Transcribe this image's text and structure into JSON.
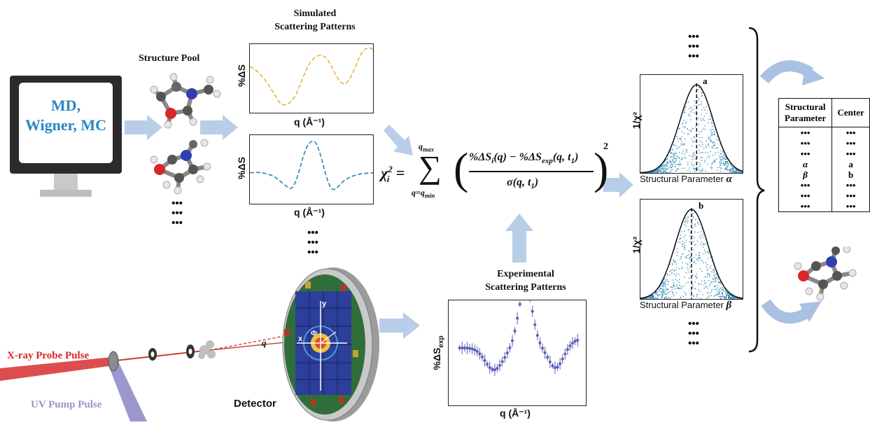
{
  "computer": {
    "line1": "MD,",
    "line2": "Wigner, MC"
  },
  "structure_pool": {
    "title": "Structure Pool",
    "ellipsis": [
      "•••",
      "•••",
      "•••"
    ]
  },
  "simulated": {
    "title_line1": "Simulated",
    "title_line2": "Scattering Patterns",
    "ylabel": "%ΔS",
    "xlabel": "q (Å⁻¹)",
    "ellipsis": [
      "•••",
      "•••",
      "•••"
    ],
    "colors": [
      "#e2b53a",
      "#2a86b5"
    ]
  },
  "equation": {
    "lhs": "χ",
    "lhs_sup": "2",
    "lhs_sub": "i",
    "equals": "=",
    "sum_top": "q",
    "sum_top_sub": "max",
    "sum_bottom": "q=q",
    "sum_bottom_sub": "min",
    "numerator": "%ΔS",
    "numerator_sub": "i",
    "numerator_mid": "(q) − %ΔS",
    "numerator_sub2": "exp",
    "numerator_tail": "(q, t",
    "numerator_t_sub": "1",
    "numerator_close": ")",
    "denominator": "σ(q, t",
    "denominator_sub": "1",
    "denominator_close": ")",
    "power": "2"
  },
  "experimental": {
    "title_line1": "Experimental",
    "title_line2": "Scattering Patterns",
    "ylabel": "%ΔS",
    "ylabel_sub": "exp",
    "xlabel": "q (Å⁻¹)",
    "color": "#5a5fb8"
  },
  "detector": {
    "label": "Detector",
    "axis_y": "y",
    "axis_x": "x",
    "phi": "Φ",
    "q": "q"
  },
  "beams": {
    "xray": "X-ray Probe Pulse",
    "uv": "UV Pump Pulse"
  },
  "distributions": {
    "top_ellipsis": [
      "•••",
      "•••",
      "•••"
    ],
    "bottom_ellipsis": [
      "•••",
      "•••",
      "•••"
    ],
    "ylabel": "1/χ²",
    "top": {
      "xlabel": "Structural Parameter ",
      "symbol": "α",
      "marker": "a"
    },
    "bottom": {
      "xlabel": "Structural Parameter ",
      "symbol": "β",
      "marker": "b"
    },
    "point_color": "#2a86b5"
  },
  "table": {
    "header_col1_line1": "Structural",
    "header_col1_line2": "Parameter",
    "header_col2": "Center",
    "rows": [
      [
        "•••",
        "•••"
      ],
      [
        "•••",
        "•••"
      ],
      [
        "•••",
        "•••"
      ],
      [
        "α",
        "a"
      ],
      [
        "β",
        "b"
      ],
      [
        "•••",
        "•••"
      ],
      [
        "•••",
        "•••"
      ],
      [
        "•••",
        "•••"
      ]
    ]
  }
}
